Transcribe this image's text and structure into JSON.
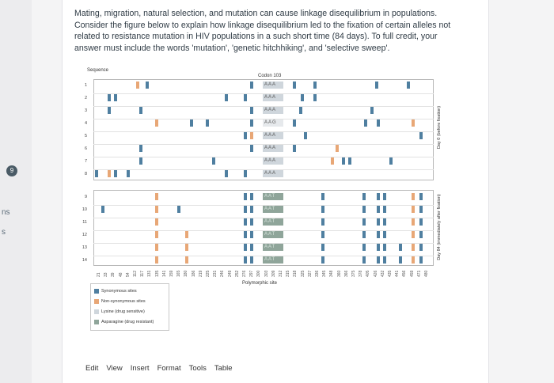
{
  "edge": {
    "left_text": "ns",
    "left_text2": "s",
    "question_number": "9"
  },
  "question": {
    "text": "Mating, migration, natural selection, and mutation can cause linkage disequilibrium in populations. Consider the figure below to explain how linkage disequilibrium led to the fixation of certain alleles not related to resistance mutation in HIV populations in a such short time (84 days). To full credit, your answer must include the words 'mutation', 'genetic hitchhiking', and 'selective sweep'."
  },
  "figure": {
    "sequence_label": "Sequence",
    "codon_label": "Codon 103",
    "x_axis_label": "Polymorphic site",
    "panel_top_label": "Day 0 (before fixation)",
    "panel_bottom_label": "Day 84 (immediately after fixation)",
    "rows_top": [
      "1",
      "2",
      "3",
      "4",
      "5",
      "6",
      "7",
      "8"
    ],
    "rows_bottom": [
      "9",
      "10",
      "11",
      "12",
      "13",
      "14"
    ],
    "codons_top": [
      "AAA",
      "AAA",
      "AAA",
      "AAG",
      "AAA",
      "AAA",
      "AAA",
      "AAA"
    ],
    "codons_bottom": [
      "AAT",
      "AAT",
      "AAT",
      "AAT",
      "AAT",
      "AAT"
    ],
    "ticks": [
      "21",
      "33",
      "39",
      "48",
      "54",
      "112",
      "117",
      "131",
      "135",
      "141",
      "159",
      "165",
      "180",
      "186",
      "219",
      "225",
      "231",
      "246",
      "249",
      "252",
      "276",
      "297",
      "300",
      "303",
      "309",
      "312",
      "315",
      "318",
      "325",
      "327",
      "336",
      "345",
      "348",
      "360",
      "366",
      "375",
      "378",
      "405",
      "426",
      "432",
      "435",
      "441",
      "456",
      "459",
      "471",
      "480"
    ],
    "legend": [
      {
        "label": "Synonymous sites",
        "color": "#4f7fa0"
      },
      {
        "label": "Non-synonymous sites",
        "color": "#e8a776"
      },
      {
        "label": "Lysine (drug sensitive)",
        "color": "#cfd6dc"
      },
      {
        "label": "Asparagine (drug resistant)",
        "color": "#8fa59a"
      }
    ]
  },
  "toolbar": {
    "edit": "Edit",
    "view": "View",
    "insert": "Insert",
    "format": "Format",
    "tools": "Tools",
    "table": "Table"
  }
}
